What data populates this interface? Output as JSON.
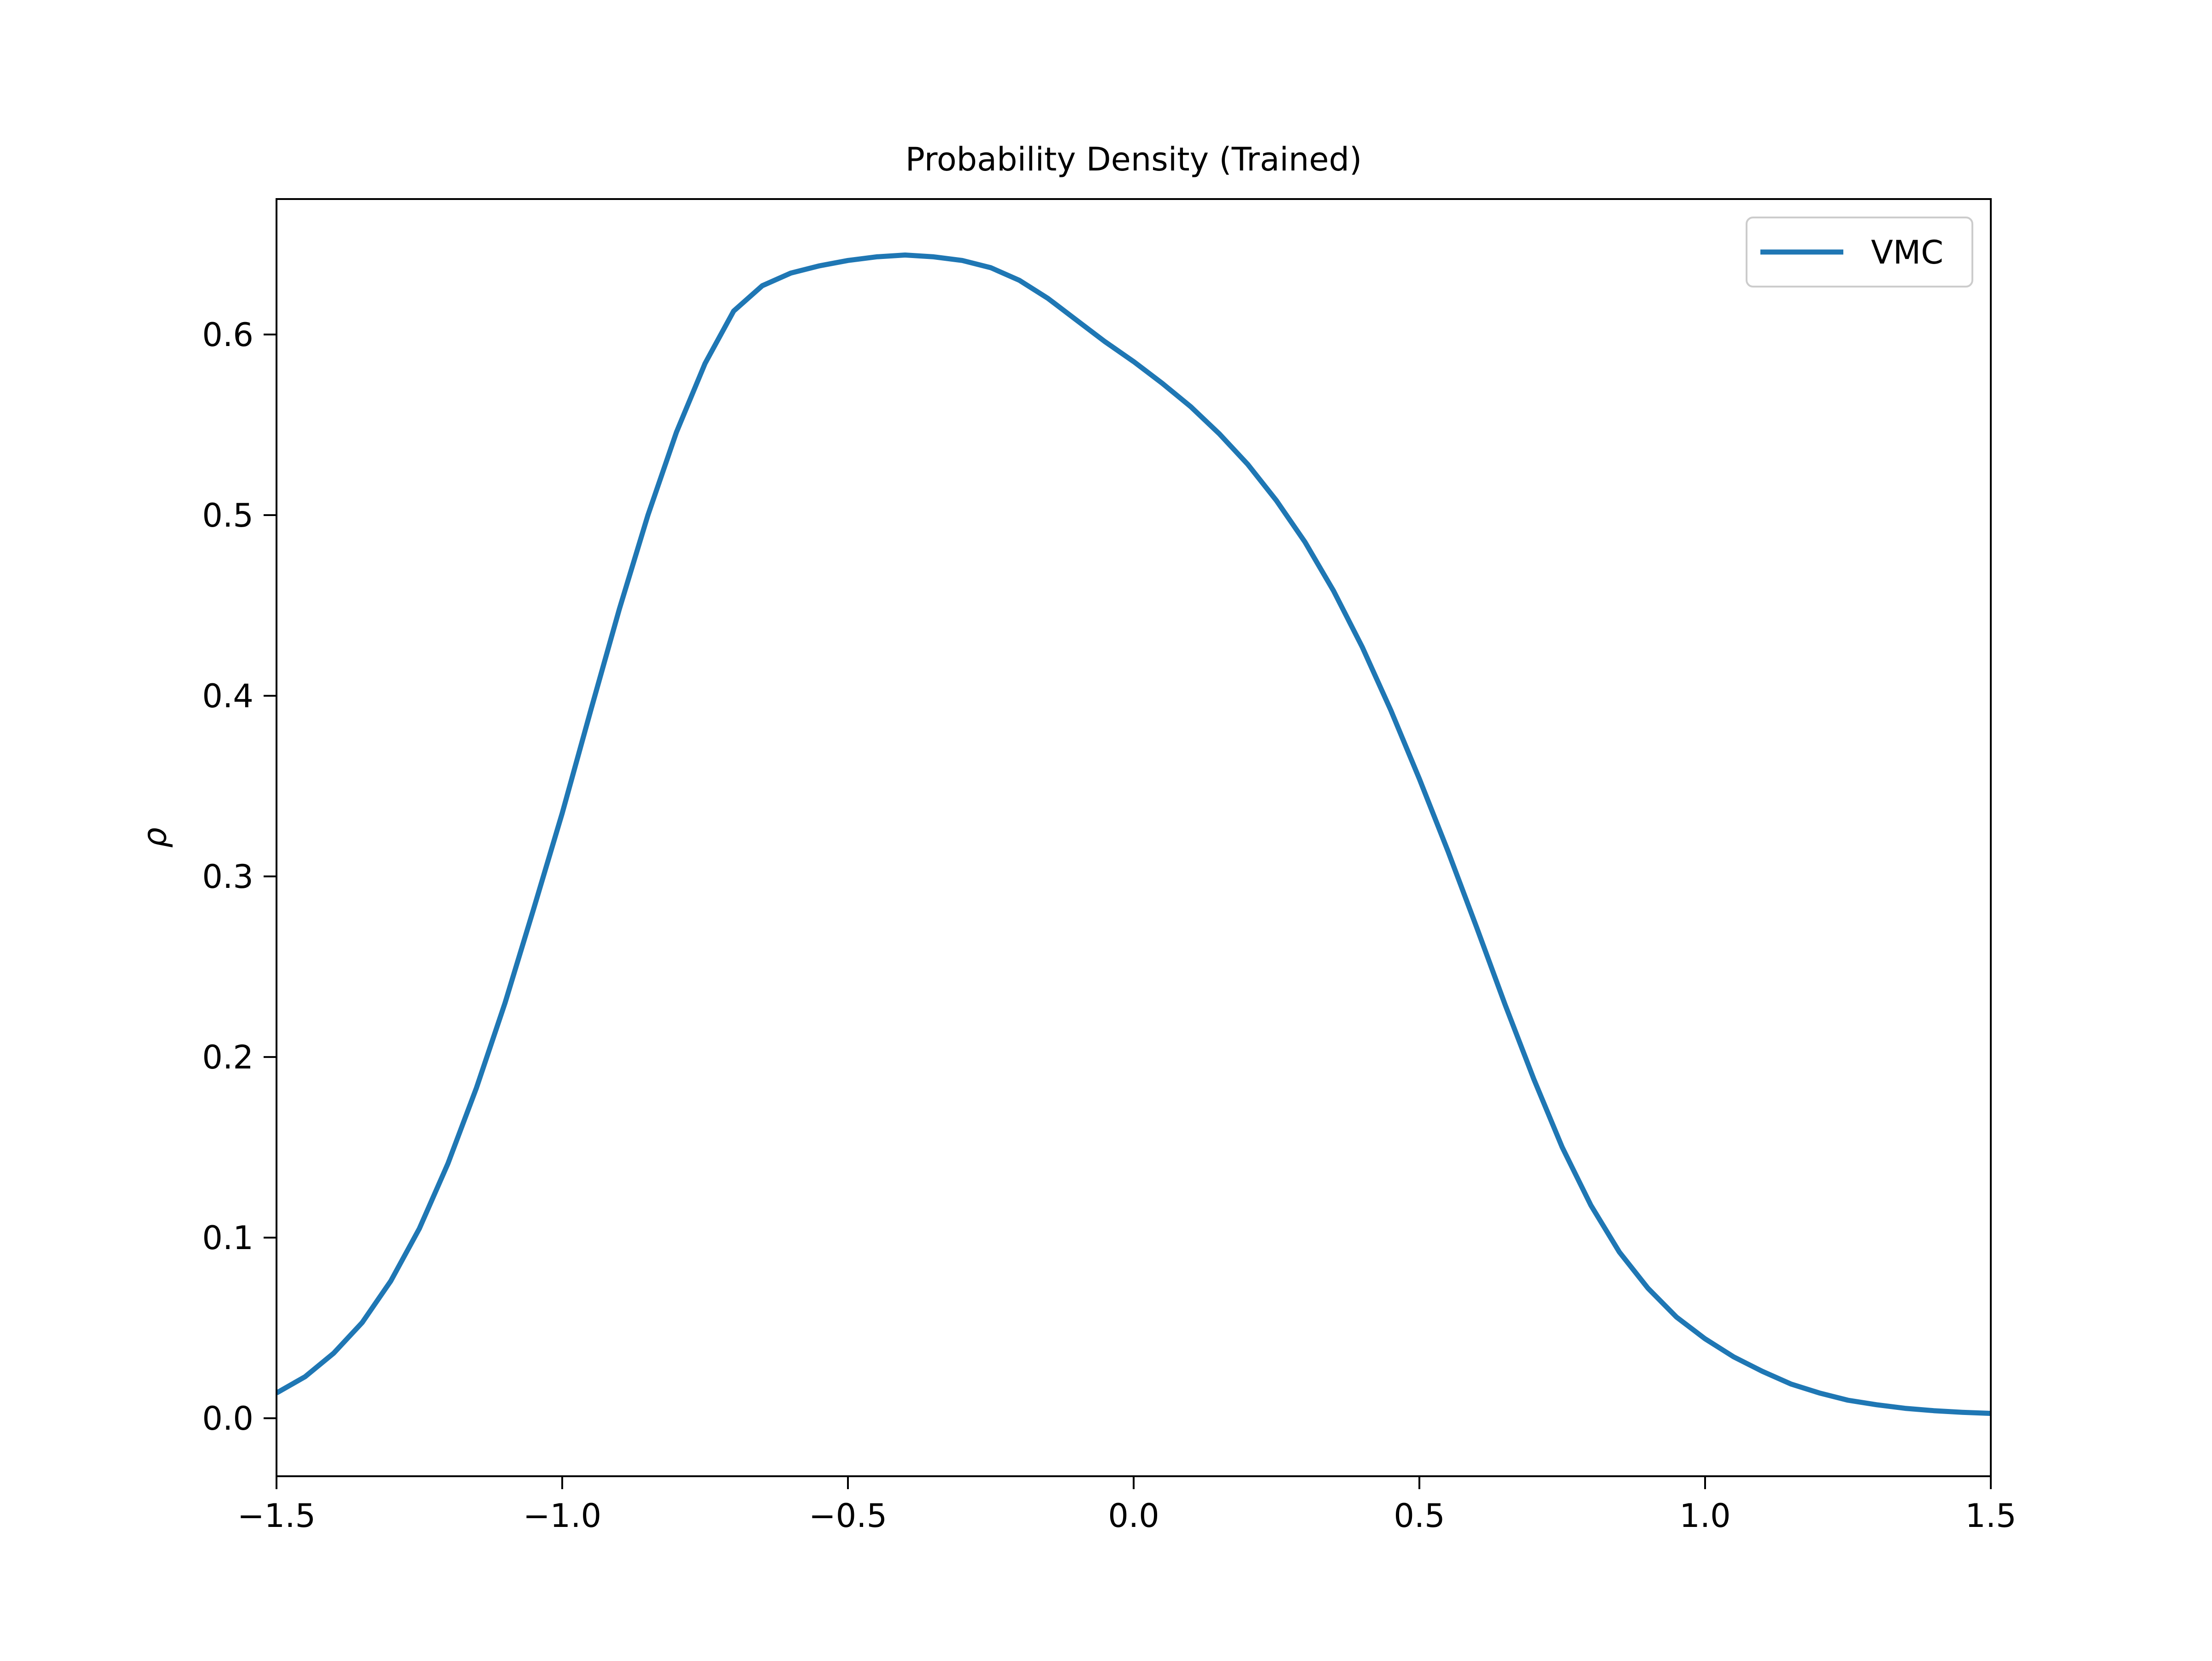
{
  "chart_data": {
    "type": "line",
    "title": "Probability Density (Trained)",
    "xlabel": "",
    "ylabel": "ρ",
    "xlim": [
      -1.5,
      1.5
    ],
    "ylim": [
      -0.0321,
      0.675
    ],
    "xticks": [
      -1.5,
      -1.0,
      -0.5,
      0.0,
      0.5,
      1.0,
      1.5
    ],
    "xtick_labels": [
      "−1.5",
      "−1.0",
      "−0.5",
      "0.0",
      "0.5",
      "1.0",
      "1.5"
    ],
    "yticks": [
      0.0,
      0.1,
      0.2,
      0.3,
      0.4,
      0.5,
      0.6
    ],
    "ytick_labels": [
      "0.0",
      "0.1",
      "0.2",
      "0.3",
      "0.4",
      "0.5",
      "0.6"
    ],
    "grid": false,
    "legend": {
      "position": "upper right",
      "entries": [
        "VMC"
      ]
    },
    "colors": {
      "VMC": "#1f77b4"
    },
    "series": [
      {
        "name": "VMC",
        "x": [
          -1.5,
          -1.45,
          -1.4,
          -1.35,
          -1.3,
          -1.25,
          -1.2,
          -1.15,
          -1.1,
          -1.05,
          -1.0,
          -0.95,
          -0.9,
          -0.85,
          -0.8,
          -0.75,
          -0.7,
          -0.65,
          -0.6,
          -0.55,
          -0.5,
          -0.45,
          -0.4,
          -0.35,
          -0.3,
          -0.25,
          -0.2,
          -0.15,
          -0.1,
          -0.05,
          0.0,
          0.05,
          0.1,
          0.15,
          0.2,
          0.25,
          0.3,
          0.35,
          0.4,
          0.45,
          0.5,
          0.55,
          0.6,
          0.65,
          0.7,
          0.75,
          0.8,
          0.85,
          0.9,
          0.95,
          1.0,
          1.05,
          1.1,
          1.15,
          1.2,
          1.25,
          1.3,
          1.35,
          1.4,
          1.45,
          1.5
        ],
        "values": [
          0.014,
          0.023,
          0.036,
          0.053,
          0.076,
          0.105,
          0.141,
          0.183,
          0.23,
          0.282,
          0.335,
          0.392,
          0.448,
          0.5,
          0.546,
          0.584,
          0.613,
          0.627,
          0.634,
          0.638,
          0.641,
          0.643,
          0.644,
          0.643,
          0.641,
          0.637,
          0.63,
          0.62,
          0.608,
          0.596,
          0.585,
          0.573,
          0.56,
          0.545,
          0.528,
          0.508,
          0.485,
          0.458,
          0.427,
          0.392,
          0.354,
          0.314,
          0.272,
          0.229,
          0.188,
          0.15,
          0.118,
          0.092,
          0.072,
          0.056,
          0.044,
          0.034,
          0.026,
          0.019,
          0.014,
          0.01,
          0.0075,
          0.0055,
          0.0042,
          0.0033,
          0.0027
        ]
      }
    ]
  }
}
